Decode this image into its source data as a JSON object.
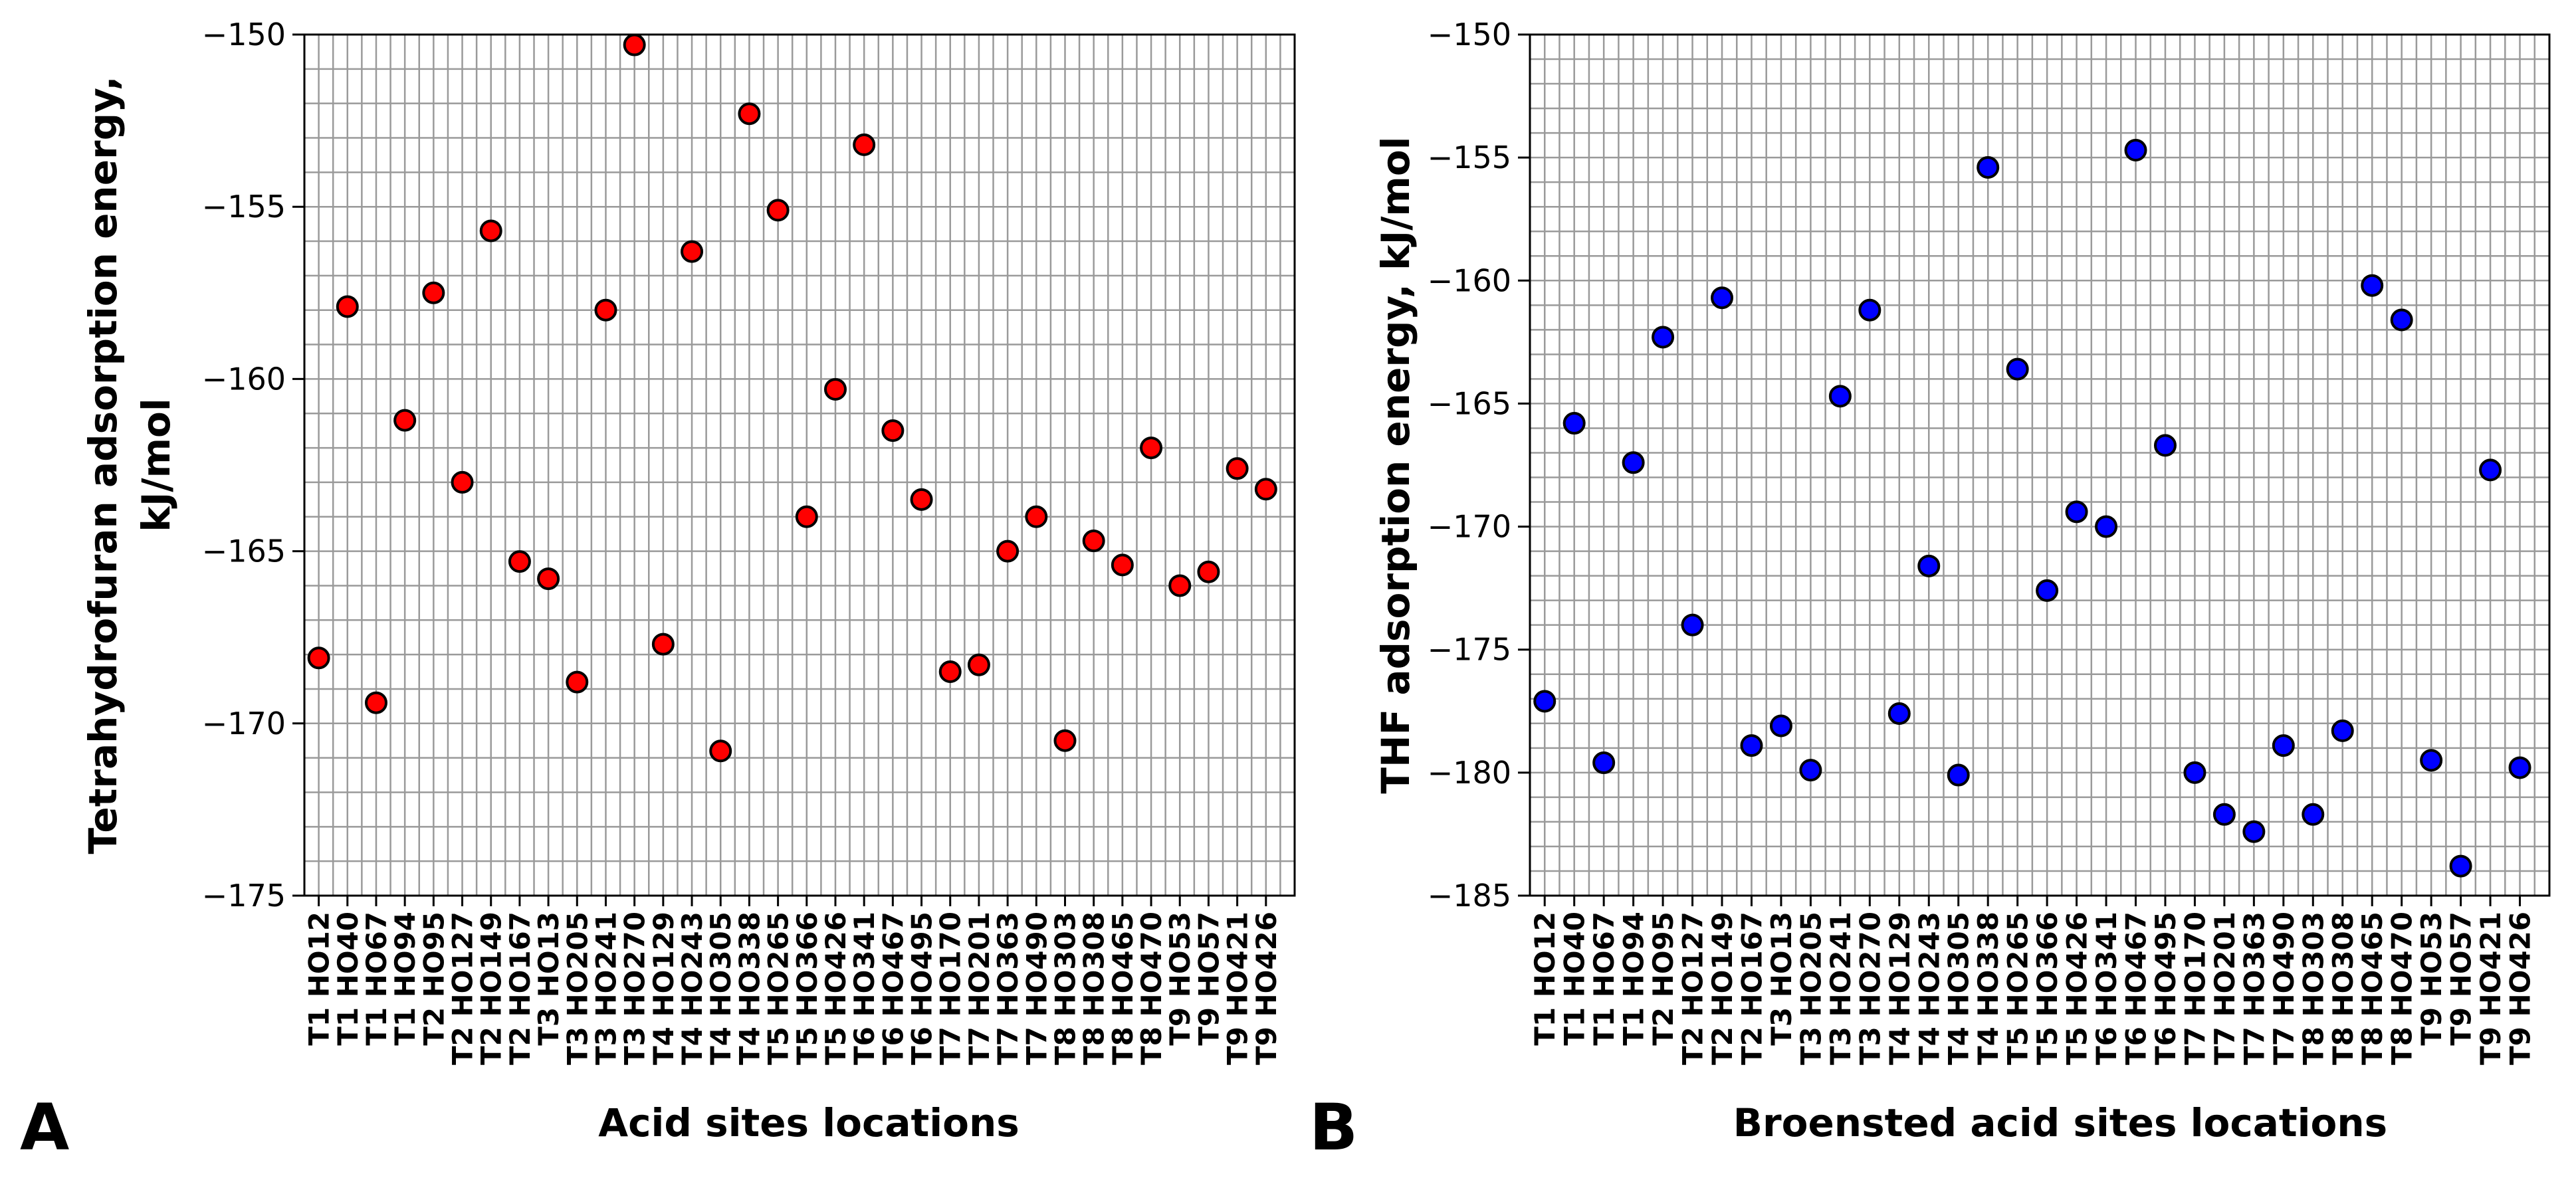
{
  "chart_data": [
    {
      "type": "scatter",
      "panel_label": "A",
      "ylabel_line1": "Tetrahydrofuran adsorption energy,",
      "ylabel_line2": "kJ/mol",
      "xlabel": "Acid sites locations",
      "ylim": [
        -175,
        -150
      ],
      "yticks": [
        -150,
        -155,
        -160,
        -165,
        -170,
        -175
      ],
      "marker_color": "#ff0000",
      "categories": [
        "T1 HO12",
        "T1 HO40",
        "T1 HO67",
        "T1 HO94",
        "T2 HO95",
        "T2 HO127",
        "T2 HO149",
        "T2 HO167",
        "T3 HO13",
        "T3 HO205",
        "T3 HO241",
        "T3 HO270",
        "T4 HO129",
        "T4 HO243",
        "T4 HO305",
        "T4 HO338",
        "T5 HO265",
        "T5 HO366",
        "T5 HO426",
        "T6 HO341",
        "T6 HO467",
        "T6 HO495",
        "T7 HO170",
        "T7 HO201",
        "T7 HO363",
        "T7 HO490",
        "T8 HO303",
        "T8 HO308",
        "T8 HO465",
        "T8 HO470",
        "T9 HO53",
        "T9 HO57",
        "T9 HO421",
        "T9 HO426"
      ],
      "values": [
        -168.1,
        -157.9,
        -169.4,
        -161.2,
        -157.5,
        -163.0,
        -155.7,
        -165.3,
        -165.8,
        -168.8,
        -158.0,
        -150.3,
        -167.7,
        -156.3,
        -170.8,
        -152.3,
        -155.1,
        -164.0,
        -160.3,
        -153.2,
        -161.5,
        -163.5,
        -168.5,
        -168.3,
        -165.0,
        -164.0,
        -170.5,
        -164.7,
        -165.4,
        -162.0,
        -166.0,
        -165.6,
        -162.6,
        -163.2
      ]
    },
    {
      "type": "scatter",
      "panel_label": "B",
      "ylabel_line1": "THF adsorption energy, kJ/mol",
      "xlabel": "Broensted acid sites locations",
      "ylim": [
        -185,
        -150
      ],
      "yticks": [
        -150,
        -155,
        -160,
        -165,
        -170,
        -175,
        -180,
        -185
      ],
      "marker_color": "#0000ff",
      "categories": [
        "T1 HO12",
        "T1 HO40",
        "T1 HO67",
        "T1 HO94",
        "T2 HO95",
        "T2 HO127",
        "T2 HO149",
        "T2 HO167",
        "T3 HO13",
        "T3 HO205",
        "T3 HO241",
        "T3 HO270",
        "T4 HO129",
        "T4 HO243",
        "T4 HO305",
        "T4 HO338",
        "T5 HO265",
        "T5 HO366",
        "T5 HO426",
        "T6 HO341",
        "T6 HO467",
        "T6 HO495",
        "T7 HO170",
        "T7 HO201",
        "T7 HO363",
        "T7 HO490",
        "T8 HO303",
        "T8 HO308",
        "T8 HO465",
        "T8 HO470",
        "T9 HO53",
        "T9 HO57",
        "T9 HO421",
        "T9 HO426"
      ],
      "values": [
        -177.1,
        -165.8,
        -179.6,
        -167.4,
        -162.3,
        -174.0,
        -160.7,
        -178.9,
        -178.1,
        -179.9,
        -164.7,
        -161.2,
        -177.6,
        -171.6,
        -180.1,
        -155.4,
        -163.6,
        -172.6,
        -169.4,
        -170.0,
        -154.7,
        -166.7,
        -180.0,
        -181.7,
        -182.4,
        -178.9,
        -181.7,
        -178.3,
        -160.2,
        -161.6,
        -179.5,
        -183.8,
        -167.7,
        -179.8
      ]
    }
  ]
}
